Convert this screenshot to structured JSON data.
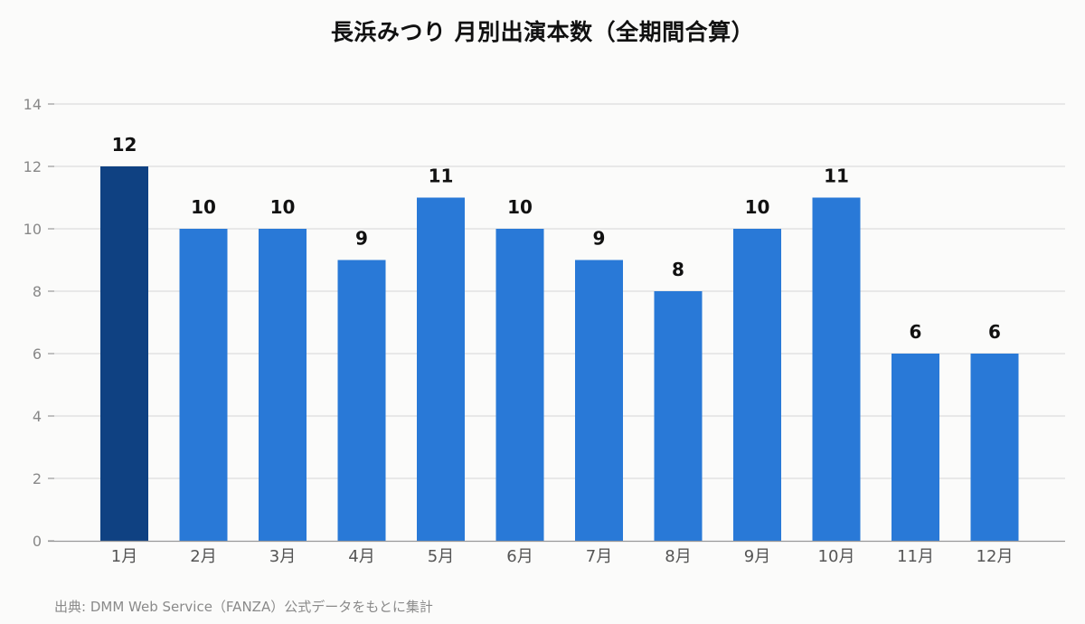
{
  "chart_data": {
    "type": "bar",
    "title": "長浜みつり 月別出演本数（全期間合算）",
    "categories": [
      "1月",
      "2月",
      "3月",
      "4月",
      "5月",
      "6月",
      "7月",
      "8月",
      "9月",
      "10月",
      "11月",
      "12月"
    ],
    "values": [
      12,
      10,
      10,
      9,
      11,
      10,
      9,
      8,
      10,
      11,
      6,
      6
    ],
    "ylim": [
      0,
      14
    ],
    "yticks": [
      0,
      2,
      4,
      6,
      8,
      10,
      12,
      14
    ],
    "xlabel": "",
    "ylabel": "",
    "grid": true,
    "legend": "none",
    "highlight_index": 0,
    "colors": {
      "bar": "#2979d7",
      "highlight": "#0f4182",
      "grid": "#dddddd",
      "axis": "#999999",
      "tick_label": "#888888",
      "data_label": "#111111"
    }
  },
  "source": "出典: DMM Web Service（FANZA）公式データをもとに集計"
}
